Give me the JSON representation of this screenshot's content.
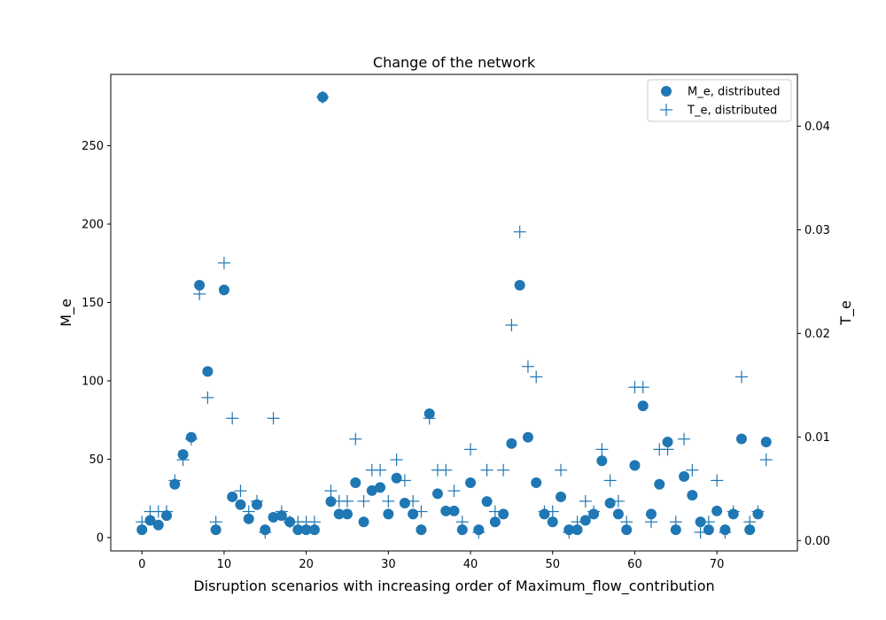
{
  "chart_data": {
    "type": "scatter",
    "title": "Change of the network",
    "xlabel": "Disruption scenarios with increasing order of Maximum_flow_contribution",
    "ylabel_left": "M_e",
    "ylabel_right": "T_e",
    "xlim": [
      -3.8,
      79.8
    ],
    "ylim_left": [
      -8.5,
      295.5
    ],
    "ylim_right": [
      -0.001,
      0.045
    ],
    "xticks": [
      0,
      10,
      20,
      30,
      40,
      50,
      60,
      70
    ],
    "yticks_left": [
      0,
      50,
      100,
      150,
      200,
      250
    ],
    "yticks_right": [
      0.0,
      0.01,
      0.02,
      0.03,
      0.04
    ],
    "ytick_labels_right": [
      "0.00",
      "0.01",
      "0.02",
      "0.03",
      "0.04"
    ],
    "legend_position": "top-right",
    "grid": false,
    "color": "#1f77b4",
    "series": [
      {
        "name": "M_e, distributed",
        "marker": "circle",
        "axis": "left",
        "x": [
          0,
          1,
          2,
          3,
          4,
          5,
          6,
          7,
          8,
          9,
          10,
          11,
          12,
          13,
          14,
          15,
          16,
          17,
          18,
          19,
          20,
          21,
          22,
          23,
          24,
          25,
          26,
          27,
          28,
          29,
          30,
          31,
          32,
          33,
          34,
          35,
          36,
          37,
          38,
          39,
          40,
          41,
          42,
          43,
          44,
          45,
          46,
          47,
          48,
          49,
          50,
          51,
          52,
          53,
          54,
          55,
          56,
          57,
          58,
          59,
          60,
          61,
          62,
          63,
          64,
          65,
          66,
          67,
          68,
          69,
          70,
          71,
          72,
          73,
          74,
          75,
          76
        ],
        "y": [
          5,
          11,
          8,
          14,
          34,
          53,
          64,
          161,
          106,
          5,
          158,
          26,
          21,
          12,
          21,
          5,
          13,
          14,
          10,
          5,
          5,
          5,
          281,
          23,
          15,
          15,
          35,
          10,
          30,
          32,
          15,
          38,
          22,
          15,
          5,
          79,
          28,
          17,
          17,
          5,
          35,
          5,
          23,
          10,
          15,
          60,
          161,
          64,
          35,
          15,
          10,
          26,
          5,
          5,
          11,
          15,
          49,
          22,
          15,
          5,
          46,
          84,
          15,
          34,
          61,
          5,
          39,
          27,
          10,
          5,
          17,
          5,
          15,
          63,
          5,
          15,
          61
        ]
      },
      {
        "name": "T_e, distributed",
        "marker": "plus",
        "axis": "right",
        "x": [
          0,
          1,
          2,
          3,
          4,
          5,
          6,
          7,
          8,
          9,
          10,
          11,
          12,
          13,
          14,
          15,
          16,
          17,
          18,
          19,
          20,
          21,
          22,
          23,
          24,
          25,
          26,
          27,
          28,
          29,
          30,
          31,
          32,
          33,
          34,
          35,
          36,
          37,
          38,
          39,
          40,
          41,
          42,
          43,
          44,
          45,
          46,
          47,
          48,
          49,
          50,
          51,
          52,
          53,
          54,
          55,
          56,
          57,
          58,
          59,
          60,
          61,
          62,
          63,
          64,
          65,
          66,
          67,
          68,
          69,
          70,
          71,
          72,
          73,
          74,
          75,
          76
        ],
        "y": [
          0.0018,
          0.0028,
          0.0028,
          0.0028,
          0.0058,
          0.0078,
          0.0098,
          0.0238,
          0.0138,
          0.0018,
          0.0268,
          0.0118,
          0.0048,
          0.0028,
          0.0038,
          0.0008,
          0.0118,
          0.0028,
          0.0018,
          0.0018,
          0.0018,
          0.0018,
          0.0428,
          0.0048,
          0.0038,
          0.0038,
          0.0098,
          0.0038,
          0.0068,
          0.0068,
          0.0038,
          0.0078,
          0.0058,
          0.0038,
          0.0028,
          0.0118,
          0.0068,
          0.0068,
          0.0048,
          0.0018,
          0.0088,
          0.0008,
          0.0068,
          0.0028,
          0.0068,
          0.0208,
          0.0298,
          0.0168,
          0.0158,
          0.0028,
          0.0028,
          0.0068,
          0.0008,
          0.0018,
          0.0038,
          0.0028,
          0.0088,
          0.0058,
          0.0038,
          0.0018,
          0.0148,
          0.0148,
          0.0018,
          0.0088,
          0.0088,
          0.0018,
          0.0098,
          0.0068,
          0.0008,
          0.0018,
          0.0058,
          0.0008,
          0.0028,
          0.0158,
          0.0018,
          0.0028,
          0.0078
        ]
      }
    ]
  }
}
